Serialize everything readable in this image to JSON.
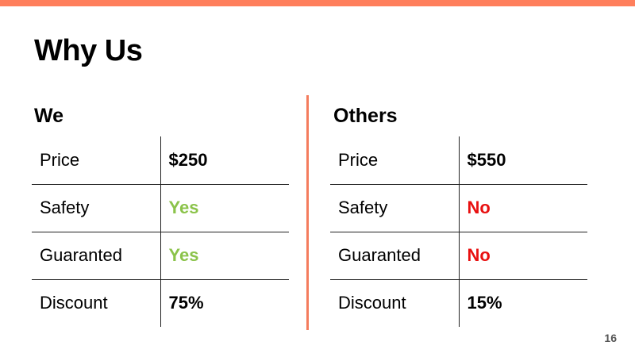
{
  "slide": {
    "title": "Why Us",
    "page_number": "16",
    "accent_color": "#FF7F5C",
    "positive_color": "#8BC34A",
    "negative_color": "#E81010"
  },
  "we": {
    "title": "We",
    "rows": [
      {
        "label": "Price",
        "value": "$250",
        "status": "neutral"
      },
      {
        "label": "Safety",
        "value": "Yes",
        "status": "positive"
      },
      {
        "label": "Guaranted",
        "value": "Yes",
        "status": "positive"
      },
      {
        "label": "Discount",
        "value": "75%",
        "status": "neutral"
      }
    ]
  },
  "others": {
    "title": "Others",
    "rows": [
      {
        "label": "Price",
        "value": "$550",
        "status": "neutral"
      },
      {
        "label": "Safety",
        "value": "No",
        "status": "negative"
      },
      {
        "label": "Guaranted",
        "value": "No",
        "status": "negative"
      },
      {
        "label": "Discount",
        "value": "15%",
        "status": "neutral"
      }
    ]
  }
}
